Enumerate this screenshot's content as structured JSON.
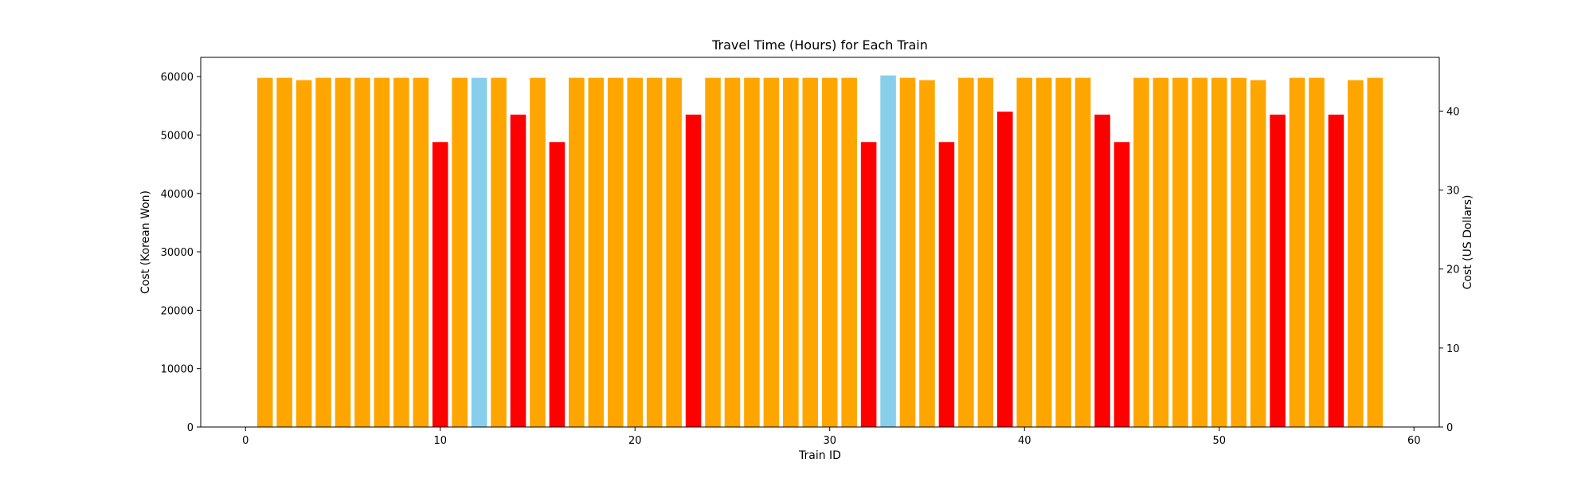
{
  "chart_data": {
    "type": "bar",
    "title": "Travel Time (Hours) for Each Train",
    "xlabel": "Train ID",
    "ylabel": "Cost (Korean Won)",
    "y2label": "Cost (US Dollars)",
    "xlim": [
      -2.3,
      61.3
    ],
    "ylim": [
      0,
      63300
    ],
    "y2lim": [
      0,
      46.8
    ],
    "xticks": [
      0,
      10,
      20,
      30,
      40,
      50,
      60
    ],
    "yticks": [
      0,
      10000,
      20000,
      30000,
      40000,
      50000,
      60000
    ],
    "y2ticks": [
      0,
      10,
      20,
      30,
      40
    ],
    "grid": false,
    "legend": "none",
    "bar_width": 0.8,
    "colors": {
      "orange": "#FFA500",
      "red": "#FF0000",
      "skyblue": "#87CEEB"
    },
    "x": [
      1,
      2,
      3,
      4,
      5,
      6,
      7,
      8,
      9,
      10,
      11,
      12,
      13,
      14,
      15,
      16,
      17,
      18,
      19,
      20,
      21,
      22,
      23,
      24,
      25,
      26,
      27,
      28,
      29,
      30,
      31,
      32,
      33,
      34,
      35,
      36,
      37,
      38,
      39,
      40,
      41,
      42,
      43,
      44,
      45,
      46,
      47,
      48,
      49,
      50,
      51,
      52,
      53,
      54,
      55,
      56,
      57,
      58
    ],
    "values": [
      59800,
      59800,
      59400,
      59800,
      59800,
      59800,
      59800,
      59800,
      59800,
      48800,
      59800,
      59800,
      59800,
      53500,
      59800,
      48800,
      59800,
      59800,
      59800,
      59800,
      59800,
      59800,
      53500,
      59800,
      59800,
      59800,
      59800,
      59800,
      59800,
      59800,
      59800,
      48800,
      60200,
      59800,
      59400,
      48800,
      59800,
      59800,
      54000,
      59800,
      59800,
      59800,
      59800,
      53500,
      48800,
      59800,
      59800,
      59800,
      59800,
      59800,
      59800,
      59400,
      53500,
      59800,
      59800,
      53500,
      59400,
      59800
    ],
    "bar_colors": [
      "orange",
      "orange",
      "orange",
      "orange",
      "orange",
      "orange",
      "orange",
      "orange",
      "orange",
      "red",
      "orange",
      "skyblue",
      "orange",
      "red",
      "orange",
      "red",
      "orange",
      "orange",
      "orange",
      "orange",
      "orange",
      "orange",
      "red",
      "orange",
      "orange",
      "orange",
      "orange",
      "orange",
      "orange",
      "orange",
      "orange",
      "red",
      "skyblue",
      "orange",
      "orange",
      "red",
      "orange",
      "orange",
      "red",
      "orange",
      "orange",
      "orange",
      "orange",
      "red",
      "red",
      "orange",
      "orange",
      "orange",
      "orange",
      "orange",
      "orange",
      "orange",
      "red",
      "orange",
      "orange",
      "red",
      "orange",
      "orange"
    ]
  }
}
